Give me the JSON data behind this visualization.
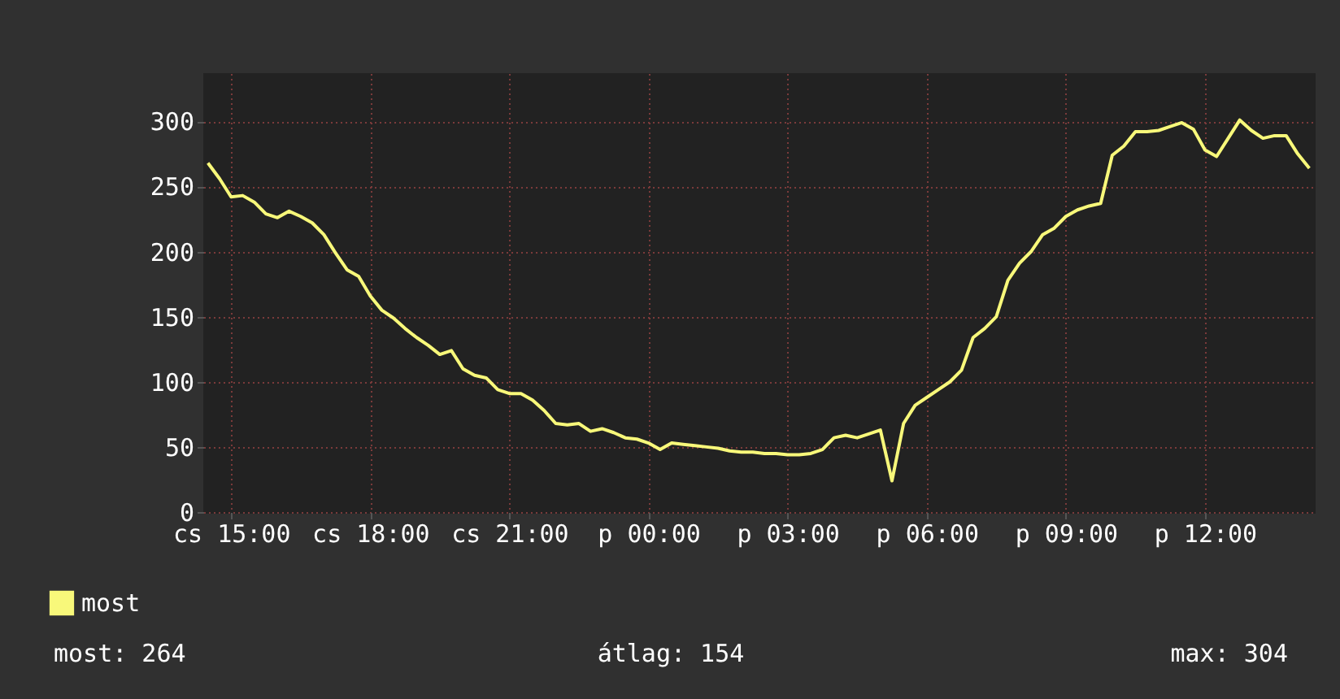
{
  "chart_data": {
    "type": "line",
    "legend": "bottom left",
    "grid": true,
    "line_style": "solid",
    "marker": "none",
    "categories": [
      null,
      null,
      "cs 15:00",
      null,
      null,
      null,
      null,
      null,
      null,
      null,
      null,
      null,
      null,
      null,
      "cs 18:00",
      null,
      null,
      null,
      null,
      null,
      null,
      null,
      null,
      null,
      null,
      null,
      "cs 21:00",
      null,
      null,
      null,
      null,
      null,
      null,
      null,
      null,
      null,
      null,
      null,
      "p 00:00",
      null,
      null,
      null,
      null,
      null,
      null,
      null,
      null,
      null,
      null,
      null,
      "p 03:00",
      null,
      null,
      null,
      null,
      null,
      null,
      null,
      null,
      null,
      null,
      null,
      "p 06:00",
      null,
      null,
      null,
      null,
      null,
      null,
      null,
      null,
      null,
      null,
      null,
      "p 09:00",
      null,
      null,
      null,
      null,
      null,
      null,
      null,
      null,
      null,
      null,
      null,
      "p 12:00",
      null,
      null,
      null,
      null,
      null,
      null,
      null,
      null,
      null
    ],
    "ylim": [
      0,
      337
    ],
    "yticks": [
      0,
      50,
      100,
      150,
      200,
      250,
      300
    ],
    "annotations": [
      "most: 264",
      "átlag: 154",
      "max: 304"
    ],
    "series": [
      {
        "name": "most",
        "color": "#f8f87a",
        "values": [
          268,
          256,
          242,
          243,
          238,
          229,
          226,
          231,
          227,
          222,
          213,
          199,
          186,
          181,
          166,
          155,
          149,
          141,
          134,
          128,
          121,
          124,
          110,
          105,
          103,
          94,
          91,
          91,
          86,
          78,
          68,
          67,
          68,
          62,
          64,
          61,
          57,
          56,
          53,
          48,
          53,
          52,
          51,
          50,
          49,
          47,
          46,
          46,
          45,
          45,
          44,
          44,
          45,
          48,
          57,
          59,
          57,
          60,
          63,
          24,
          68,
          82,
          88,
          94,
          100,
          109,
          134,
          141,
          150,
          178,
          191,
          200,
          213,
          218,
          227,
          232,
          235,
          237,
          274,
          281,
          292,
          292,
          293,
          296,
          299,
          294,
          278,
          273,
          287,
          301,
          293,
          287,
          289,
          289,
          275,
          264
        ]
      }
    ]
  }
}
